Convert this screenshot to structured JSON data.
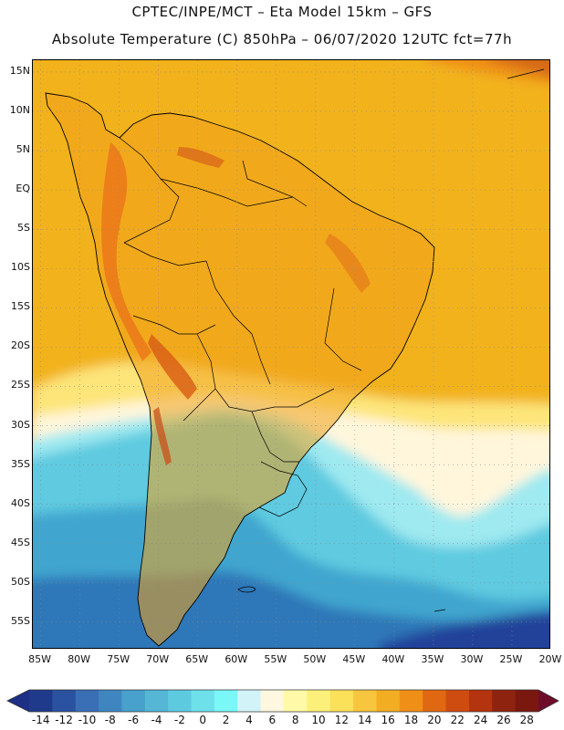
{
  "header": {
    "line1": "CPTEC/INPE/MCT –  Eta Model 15km – GFS",
    "line2": "Absolute Temperature (C) 850hPa – 06/07/2020 12UTC fct=77h"
  },
  "map": {
    "lat_labels": [
      "15N",
      "10N",
      "5N",
      "EQ",
      "5S",
      "10S",
      "15S",
      "20S",
      "25S",
      "30S",
      "35S",
      "40S",
      "45S",
      "50S",
      "55S"
    ],
    "lon_labels": [
      "85W",
      "80W",
      "75W",
      "70W",
      "65W",
      "60W",
      "55W",
      "50W",
      "45W",
      "40W",
      "35W",
      "30W",
      "25W",
      "20W"
    ],
    "lat_range": [
      -58.5,
      16.5
    ],
    "lon_range": [
      -86,
      -20
    ],
    "land_color": "#f0a31c",
    "ocean_color_warm": "#f2b21e"
  },
  "colorbar": {
    "labels": [
      "-14",
      "-12",
      "-10",
      "-8",
      "-6",
      "-4",
      "-2",
      "0",
      "2",
      "4",
      "6",
      "8",
      "10",
      "12",
      "14",
      "16",
      "18",
      "20",
      "22",
      "24",
      "26",
      "28"
    ],
    "colors": [
      "#1f3a8a",
      "#2a52a0",
      "#3a6fb5",
      "#3f86c0",
      "#48a0cc",
      "#55b6d6",
      "#5ecae0",
      "#6ee0ea",
      "#7af7f7",
      "#d2f4f8",
      "#fff7e0",
      "#fff9a8",
      "#fdf07a",
      "#fbe05a",
      "#f7c53e",
      "#f2ad23",
      "#ef8f18",
      "#e16812",
      "#cf4c10",
      "#b3340e",
      "#8e2310",
      "#7a1810"
    ],
    "left_tip_color": "#1e2f86",
    "right_tip_color": "#6e0d2a"
  }
}
